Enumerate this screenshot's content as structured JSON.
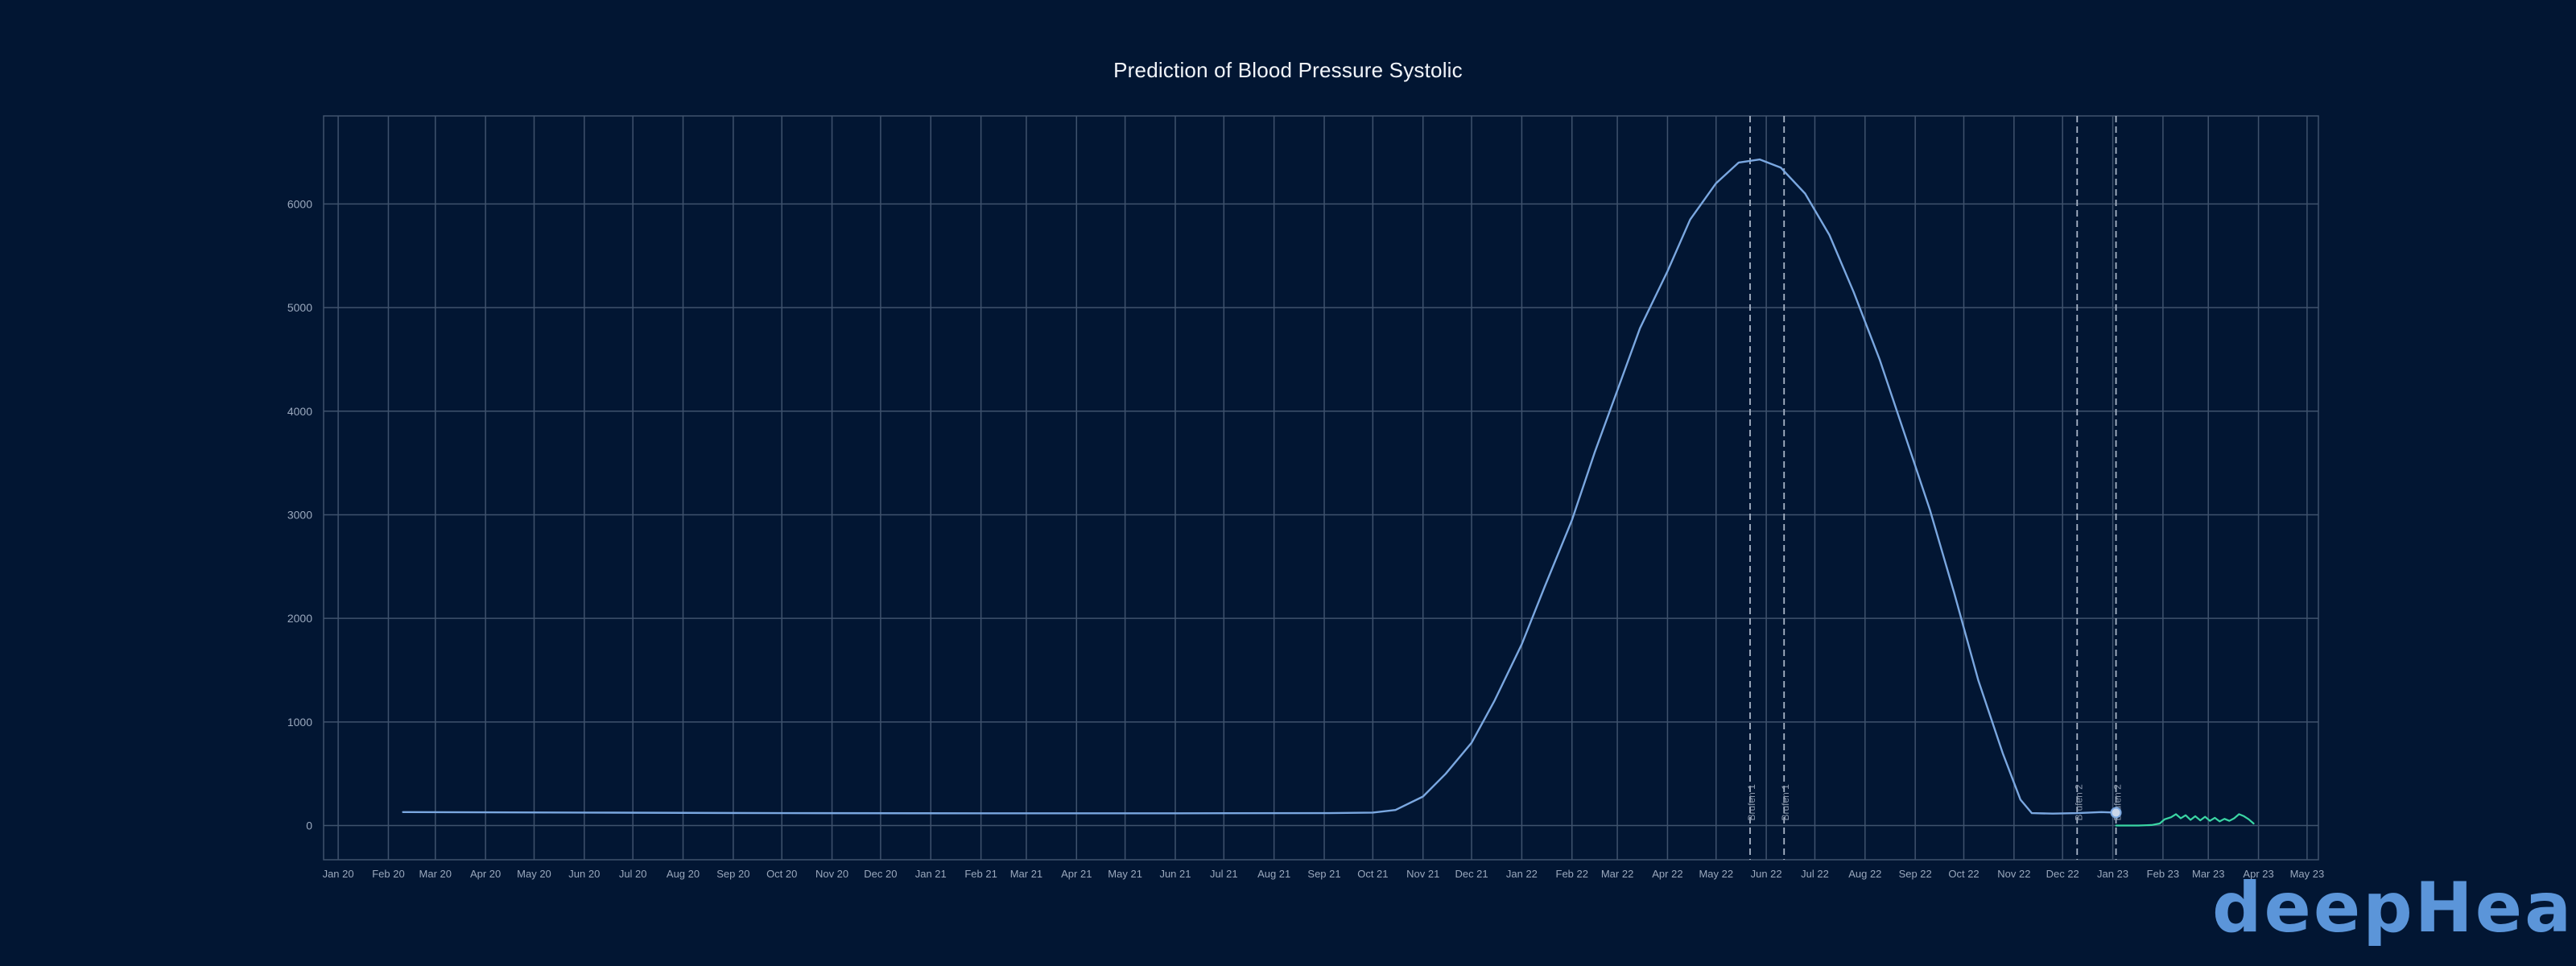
{
  "chart_data": {
    "type": "line",
    "title": "Prediction of Blood Pressure Systolic",
    "xlabel": "",
    "ylabel": "",
    "x_tick_labels": [
      "Jan 20",
      "Feb 20",
      "Mar 20",
      "Apr 20",
      "May 20",
      "Jun 20",
      "Jul 20",
      "Aug 20",
      "Sep 20",
      "Oct 20",
      "Nov 20",
      "Dec 20",
      "Jan 21",
      "Feb 21",
      "Mar 21",
      "Apr 21",
      "May 21",
      "Jun 21",
      "Jul 21",
      "Aug 21",
      "Sep 21",
      "Oct 21",
      "Nov 21",
      "Dec 21",
      "Jan 22",
      "Feb 22",
      "Mar 22",
      "Apr 22",
      "May 22",
      "Jun 22",
      "Jul 22",
      "Aug 22",
      "Sep 22",
      "Oct 22",
      "Nov 22",
      "Dec 22",
      "Jan 23",
      "Feb 23",
      "Mar 23",
      "Apr 23",
      "May 23"
    ],
    "y_ticks": [
      0,
      1000,
      2000,
      3000,
      4000,
      5000,
      6000
    ],
    "xlim": [
      "2019-12-23",
      "2023-05-08"
    ],
    "ylim": [
      -330,
      6850
    ],
    "grid": true,
    "series": [
      {
        "color": "#7aa7e0",
        "points": [
          [
            "2020-02-10",
            130
          ],
          [
            "2020-06-01",
            125
          ],
          [
            "2020-10-01",
            120
          ],
          [
            "2021-02-01",
            118
          ],
          [
            "2021-06-01",
            118
          ],
          [
            "2021-09-01",
            120
          ],
          [
            "2021-10-01",
            125
          ],
          [
            "2021-10-15",
            150
          ],
          [
            "2021-11-01",
            280
          ],
          [
            "2021-11-15",
            500
          ],
          [
            "2021-12-01",
            800
          ],
          [
            "2021-12-15",
            1200
          ],
          [
            "2022-01-01",
            1750
          ],
          [
            "2022-01-15",
            2300
          ],
          [
            "2022-02-01",
            2950
          ],
          [
            "2022-02-15",
            3600
          ],
          [
            "2022-03-01",
            4200
          ],
          [
            "2022-03-15",
            4800
          ],
          [
            "2022-04-01",
            5350
          ],
          [
            "2022-04-15",
            5850
          ],
          [
            "2022-05-01",
            6200
          ],
          [
            "2022-05-15",
            6400
          ],
          [
            "2022-05-28",
            6430
          ],
          [
            "2022-06-10",
            6350
          ],
          [
            "2022-06-25",
            6100
          ],
          [
            "2022-07-10",
            5700
          ],
          [
            "2022-07-25",
            5150
          ],
          [
            "2022-08-10",
            4500
          ],
          [
            "2022-08-25",
            3800
          ],
          [
            "2022-09-10",
            3050
          ],
          [
            "2022-09-25",
            2250
          ],
          [
            "2022-10-10",
            1400
          ],
          [
            "2022-10-25",
            700
          ],
          [
            "2022-11-05",
            250
          ],
          [
            "2022-11-12",
            120
          ],
          [
            "2022-11-25",
            115
          ],
          [
            "2022-12-10",
            120
          ],
          [
            "2022-12-25",
            130
          ],
          [
            "2023-01-03",
            125
          ]
        ]
      },
      {
        "color": "#3bd6a4",
        "points": [
          [
            "2023-01-03",
            0
          ],
          [
            "2023-01-10",
            0
          ],
          [
            "2023-01-17",
            0
          ],
          [
            "2023-01-25",
            5
          ],
          [
            "2023-01-30",
            20
          ],
          [
            "2023-02-02",
            60
          ],
          [
            "2023-02-06",
            80
          ],
          [
            "2023-02-09",
            110
          ],
          [
            "2023-02-12",
            70
          ],
          [
            "2023-02-15",
            100
          ],
          [
            "2023-02-18",
            55
          ],
          [
            "2023-02-21",
            90
          ],
          [
            "2023-02-24",
            50
          ],
          [
            "2023-02-27",
            85
          ],
          [
            "2023-03-02",
            45
          ],
          [
            "2023-03-05",
            75
          ],
          [
            "2023-03-08",
            40
          ],
          [
            "2023-03-11",
            65
          ],
          [
            "2023-03-14",
            45
          ],
          [
            "2023-03-17",
            70
          ],
          [
            "2023-03-20",
            110
          ],
          [
            "2023-03-23",
            90
          ],
          [
            "2023-03-26",
            60
          ],
          [
            "2023-03-29",
            20
          ]
        ]
      }
    ],
    "vertical_markers": [
      {
        "date": "2022-05-22",
        "label": "Brufen 1"
      },
      {
        "date": "2022-06-12",
        "label": "Brufen 1"
      },
      {
        "date": "2022-12-10",
        "label": "Brufen 2"
      },
      {
        "date": "2023-01-03",
        "label": "Brufen 2"
      }
    ],
    "point_marker": {
      "date": "2023-01-03",
      "value": 125
    }
  },
  "brand": {
    "logo_text": "deepHealth",
    "color": "#5b95d9"
  },
  "colors": {
    "background": "#021633",
    "grid": "#3f526d",
    "axis_text": "#9aa8bd",
    "title": "#f2f5fa"
  }
}
